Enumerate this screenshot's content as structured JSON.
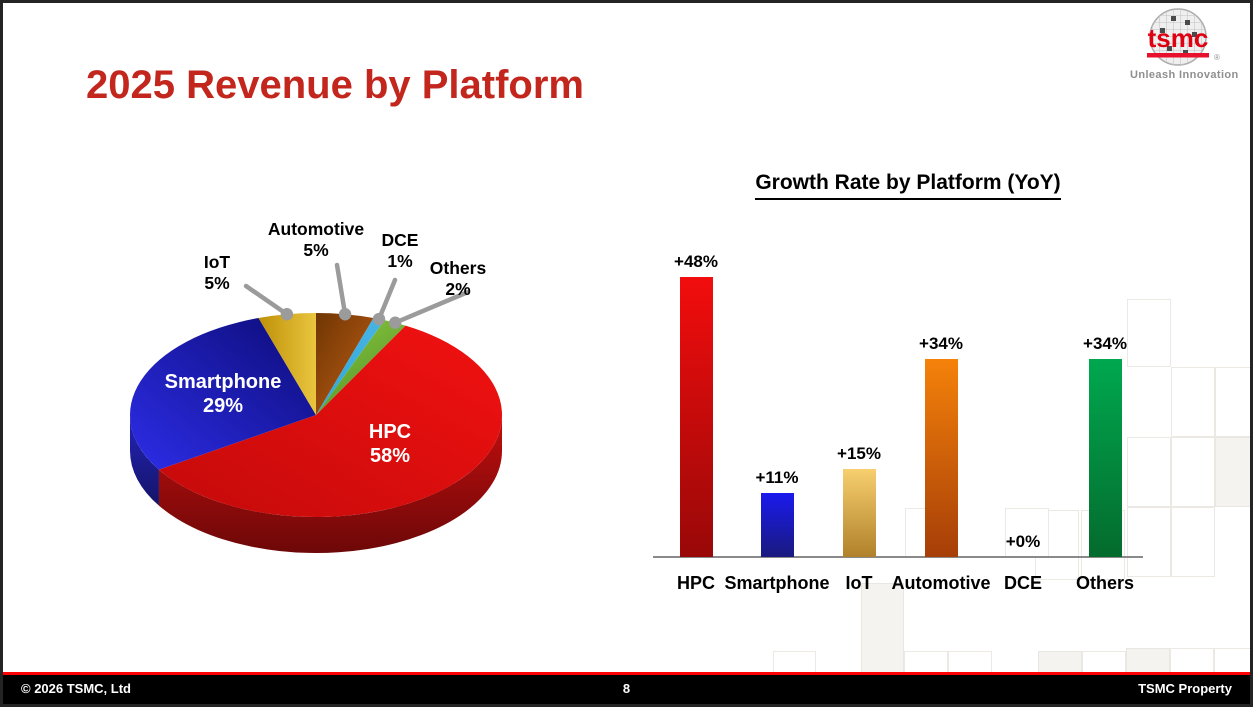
{
  "slide": {
    "title": "2025 Revenue by Platform",
    "footer": {
      "copyright": "© 2026 TSMC, Ltd",
      "page_number": "8",
      "property": "TSMC Property"
    },
    "logo": {
      "brand": "tsmc",
      "registered": "®",
      "tagline": "Unleash Innovation"
    }
  },
  "colors": {
    "title": "#C2261D",
    "brand_red": "#DF0012",
    "footer_line": "#FF0000",
    "footer_bar": "#000000",
    "leader_gray": "#9B9B9B",
    "axis_gray": "#8A8A8A"
  },
  "chart_data": [
    {
      "type": "pie",
      "effect": "3d",
      "title": "2025 Revenue by Platform",
      "unit": "percent",
      "slices": [
        {
          "label": "Automotive",
          "value": 5,
          "display": "5%",
          "color": "#6F3603",
          "color2": "#C25F16",
          "label_placement": "outside"
        },
        {
          "label": "DCE",
          "value": 1,
          "display": "1%",
          "color": "#2FA8DC",
          "color2": "#49B4E4",
          "label_placement": "outside"
        },
        {
          "label": "Others",
          "value": 2,
          "display": "2%",
          "color": "#8CC63F",
          "color2": "#55982A",
          "label_placement": "outside"
        },
        {
          "label": "HPC",
          "value": 58,
          "display": "58%",
          "color": "#F21111",
          "color2": "#C40A0A",
          "label_placement": "inside"
        },
        {
          "label": "Smartphone",
          "value": 29,
          "display": "29%",
          "color": "#2D2DE8",
          "color2": "#0C0C78",
          "label_placement": "inside"
        },
        {
          "label": "IoT",
          "value": 5,
          "display": "5%",
          "color": "#BE9008",
          "color2": "#E9C63E",
          "label_placement": "outside"
        }
      ]
    },
    {
      "type": "bar",
      "title": "Growth Rate by Platform (YoY)",
      "categories": [
        "HPC",
        "Smartphone",
        "IoT",
        "Automotive",
        "DCE",
        "Others"
      ],
      "values": [
        48,
        11,
        15,
        34,
        0,
        34
      ],
      "value_labels": [
        "+48%",
        "+11%",
        "+15%",
        "+34%",
        "+0%",
        "+34%"
      ],
      "bar_colors": [
        [
          "#F20D0D",
          "#990808"
        ],
        [
          "#1A1AEE",
          "#1A1A7E"
        ],
        [
          "#F7CF6F",
          "#B0812A"
        ],
        [
          "#F5820A",
          "#A63E08"
        ],
        [
          "#CCCCCC",
          "#CCCCCC"
        ],
        [
          "#00A84F",
          "#046B2D"
        ]
      ],
      "ylim": [
        0,
        50
      ],
      "grid": false,
      "legend": false
    }
  ]
}
